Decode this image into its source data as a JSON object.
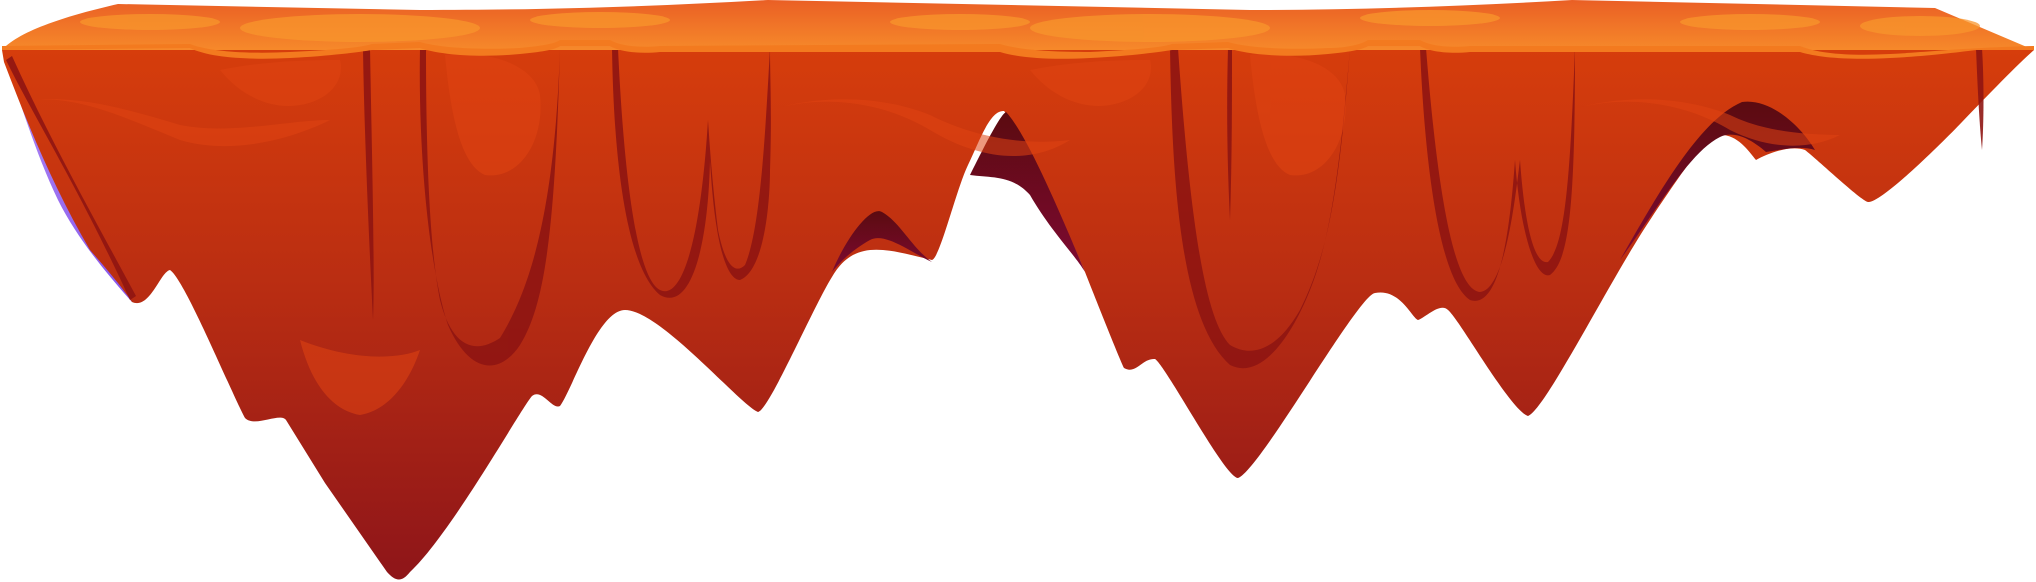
{
  "asset": {
    "kind": "floating lava platform tile",
    "background": "#ffffff",
    "colors": {
      "top_surface_light": "#f6892a",
      "top_surface_dark": "#ea5f25",
      "top_rim": "#f37a1f",
      "body_top": "#d63d0c",
      "body_mid": "#b92d12",
      "body_bottom": "#8e1519",
      "drip_shadow": "#8f1512",
      "cavity_dark": "#5b0b10",
      "cavity_magenta": "#7e0a32",
      "side_accent": "#9b6cf2",
      "highlight_blob": "#e04412"
    }
  }
}
